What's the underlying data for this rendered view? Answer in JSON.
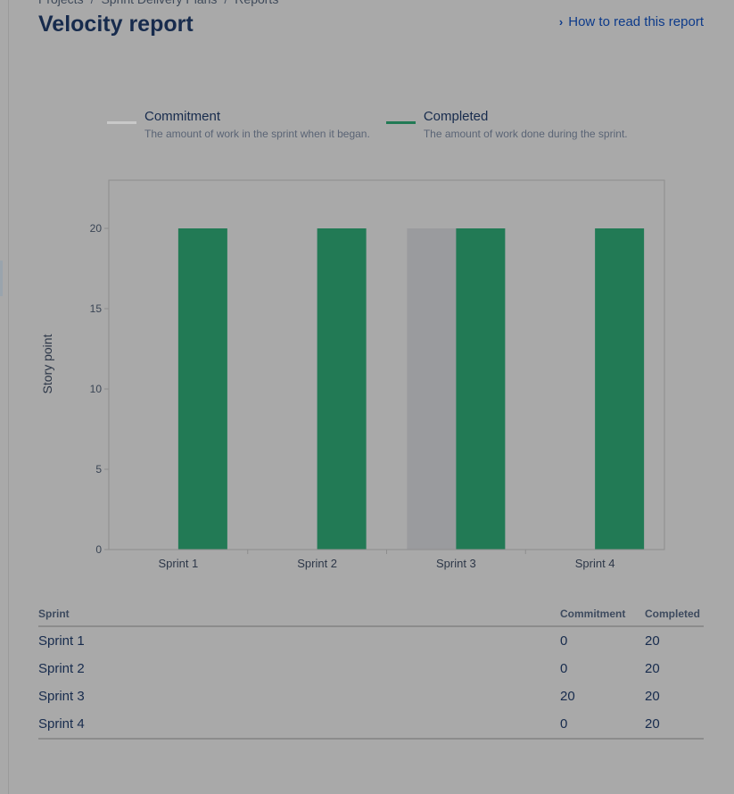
{
  "breadcrumb": {
    "items": [
      "Projects",
      "Sprint Delivery Plans",
      "Reports"
    ],
    "separator": "/"
  },
  "page": {
    "title": "Velocity report",
    "help_link": "How to read this report"
  },
  "legend": [
    {
      "name": "Commitment",
      "description": "The amount of work in the sprint when it began.",
      "color": "#c9c9c9"
    },
    {
      "name": "Completed",
      "description": "The amount of work done during the sprint.",
      "color": "#227a55"
    }
  ],
  "chart_data": {
    "type": "bar",
    "categories": [
      "Sprint 1",
      "Sprint 2",
      "Sprint 3",
      "Sprint 4"
    ],
    "series": [
      {
        "name": "Commitment",
        "values": [
          0,
          0,
          20,
          0
        ],
        "color": "#9a9b9e"
      },
      {
        "name": "Completed",
        "values": [
          20,
          20,
          20,
          20
        ],
        "color": "#227a55"
      }
    ],
    "ylabel": "Story point",
    "yticks": [
      0,
      5,
      10,
      15,
      20
    ],
    "ylim": [
      0,
      23
    ]
  },
  "table": {
    "headers": {
      "sprint": "Sprint",
      "commitment": "Commitment",
      "completed": "Completed"
    },
    "rows": [
      {
        "sprint": "Sprint 1",
        "commitment": "0",
        "completed": "20"
      },
      {
        "sprint": "Sprint 2",
        "commitment": "0",
        "completed": "20"
      },
      {
        "sprint": "Sprint 3",
        "commitment": "20",
        "completed": "20"
      },
      {
        "sprint": "Sprint 4",
        "commitment": "0",
        "completed": "20"
      }
    ]
  }
}
